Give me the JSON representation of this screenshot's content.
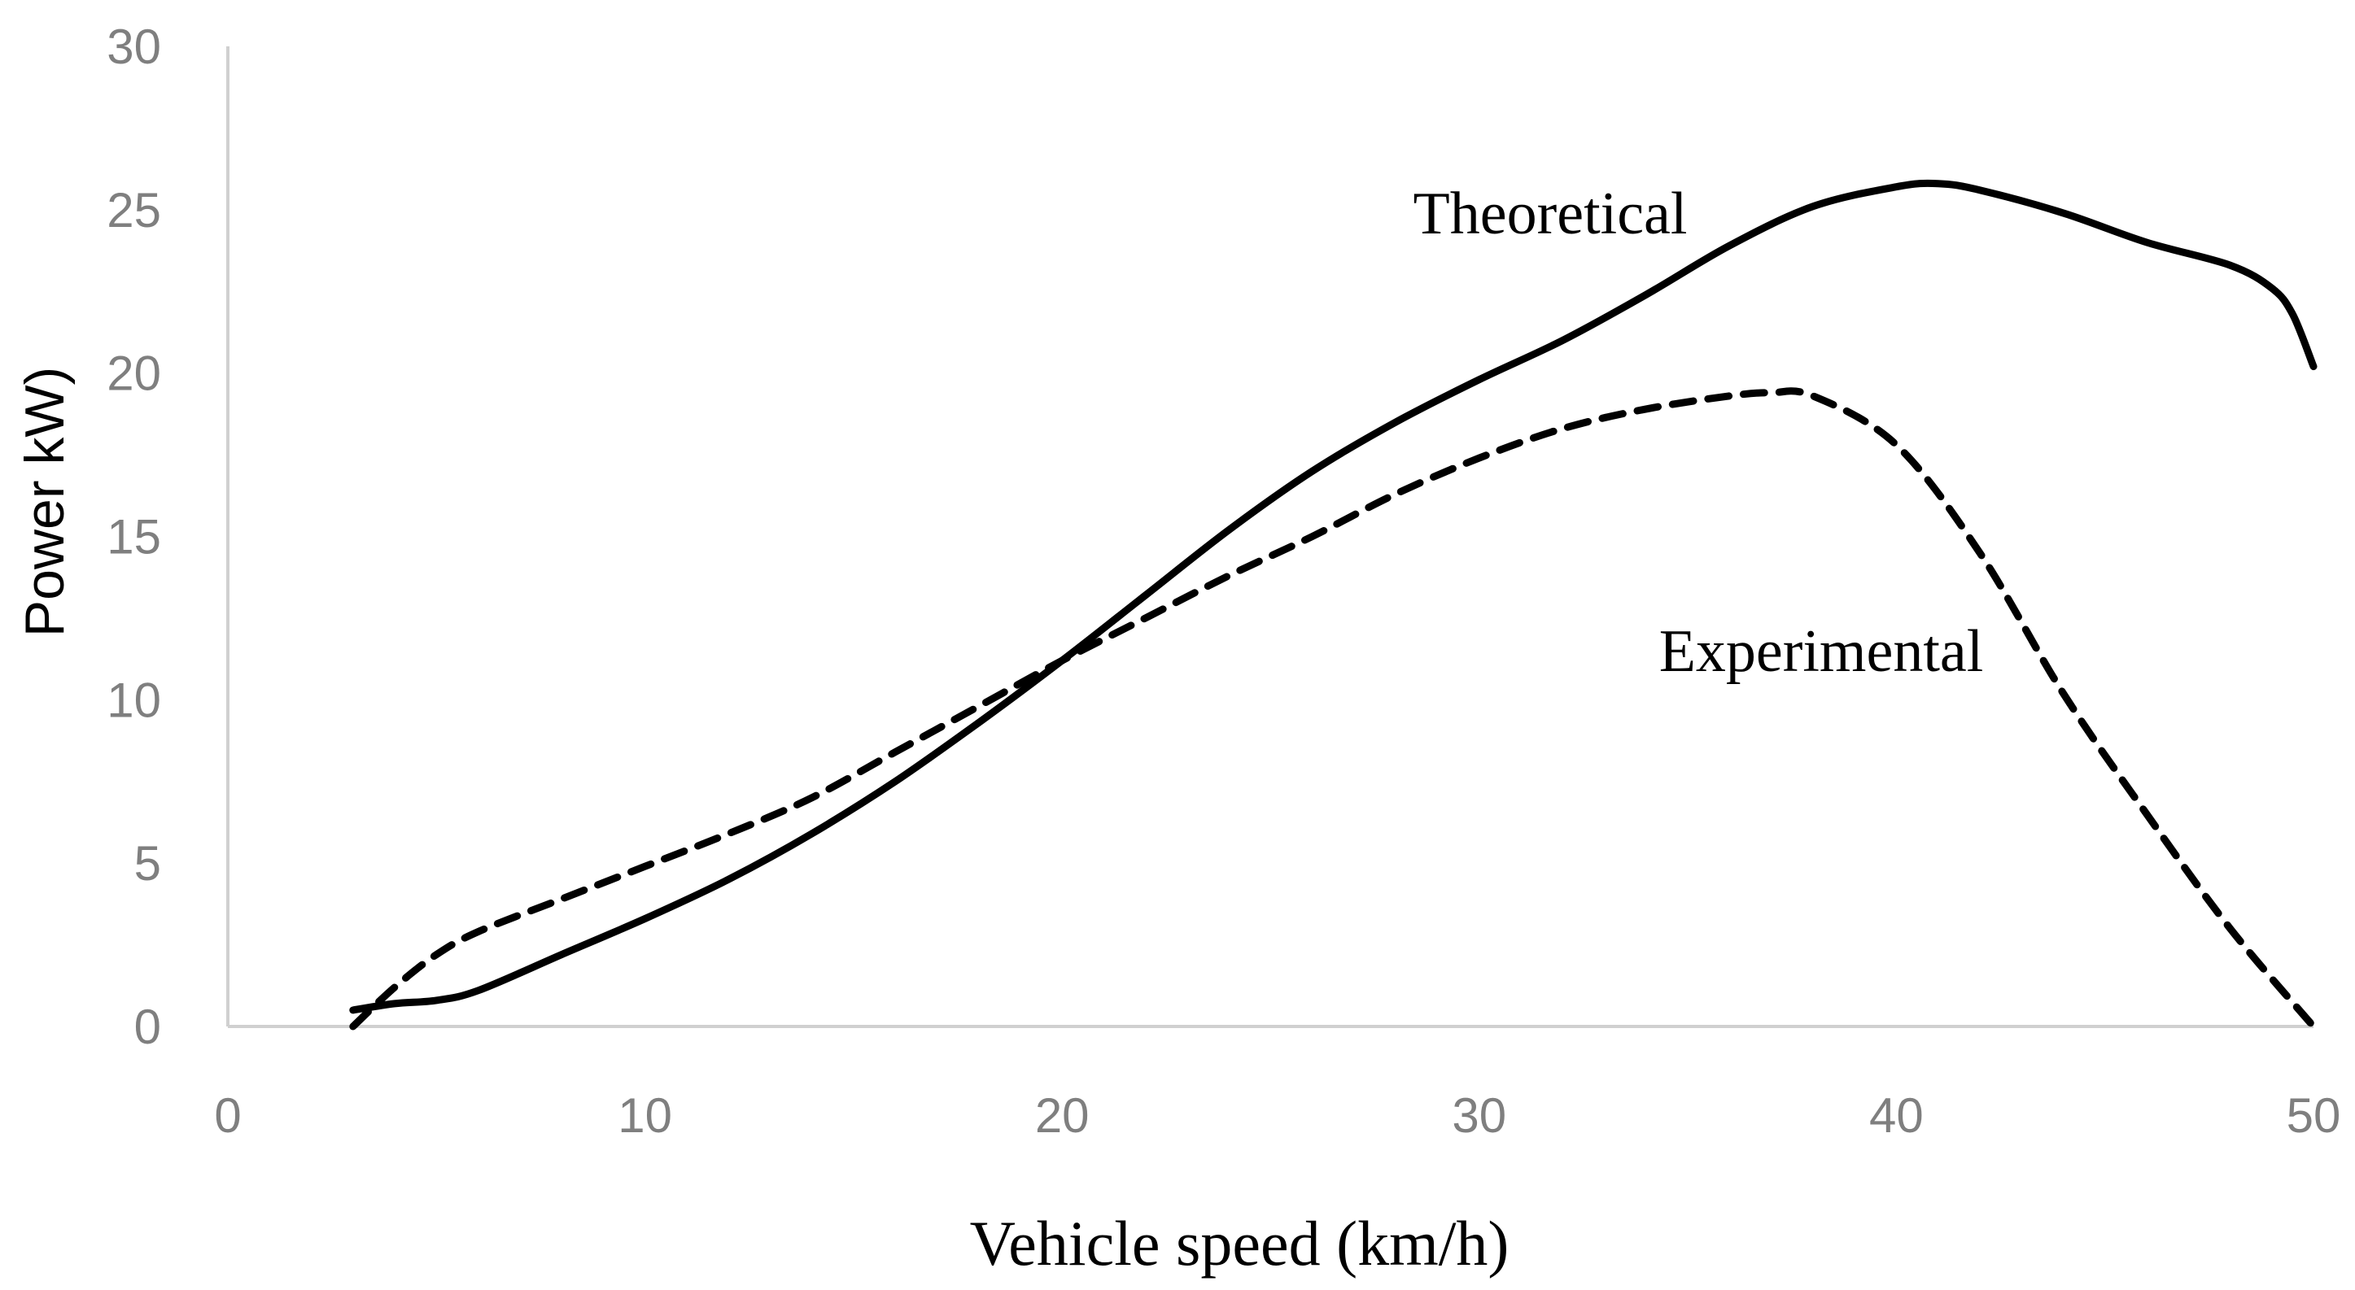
{
  "chart_data": {
    "type": "line",
    "title": "",
    "xlabel": "Vehicle speed (km/h)",
    "ylabel": "Power kW)",
    "xlim": [
      0,
      50
    ],
    "ylim": [
      0,
      30
    ],
    "xticks": [
      0,
      10,
      20,
      30,
      40,
      50
    ],
    "yticks": [
      0,
      5,
      10,
      15,
      20,
      25,
      30
    ],
    "grid": false,
    "colors": {
      "series": "#000000",
      "tick": "#7f7f7f",
      "axis": "#d0d0d0"
    },
    "series": [
      {
        "name": "Theoretical",
        "style": "solid",
        "x": [
          3,
          4,
          5,
          6,
          8,
          10,
          12,
          14,
          16,
          18,
          20,
          22,
          24,
          26,
          28,
          30,
          32,
          34,
          36,
          38,
          40,
          41,
          42,
          44,
          46,
          48,
          49,
          49.5,
          50
        ],
        "y": [
          0.5,
          0.7,
          0.8,
          1.1,
          2.2,
          3.3,
          4.5,
          5.9,
          7.5,
          9.3,
          11.2,
          13.2,
          15.2,
          17.0,
          18.5,
          19.8,
          21.0,
          22.4,
          23.9,
          25.1,
          25.7,
          25.8,
          25.6,
          24.9,
          24.0,
          23.3,
          22.6,
          21.8,
          20.2
        ]
      },
      {
        "name": "Experimental",
        "style": "dashed",
        "x": [
          3,
          4,
          5,
          6,
          8,
          10,
          12,
          14,
          16,
          18,
          20,
          22,
          24,
          26,
          28,
          30,
          32,
          34,
          36,
          37,
          38,
          40,
          42,
          44,
          46,
          48,
          50
        ],
        "y": [
          0,
          1.2,
          2.2,
          2.9,
          3.9,
          4.9,
          5.9,
          7.0,
          8.4,
          9.8,
          11.2,
          12.5,
          13.8,
          15.0,
          16.3,
          17.4,
          18.3,
          18.9,
          19.3,
          19.4,
          19.3,
          17.8,
          14.5,
          10.2,
          6.5,
          3.0,
          0
        ]
      }
    ]
  }
}
